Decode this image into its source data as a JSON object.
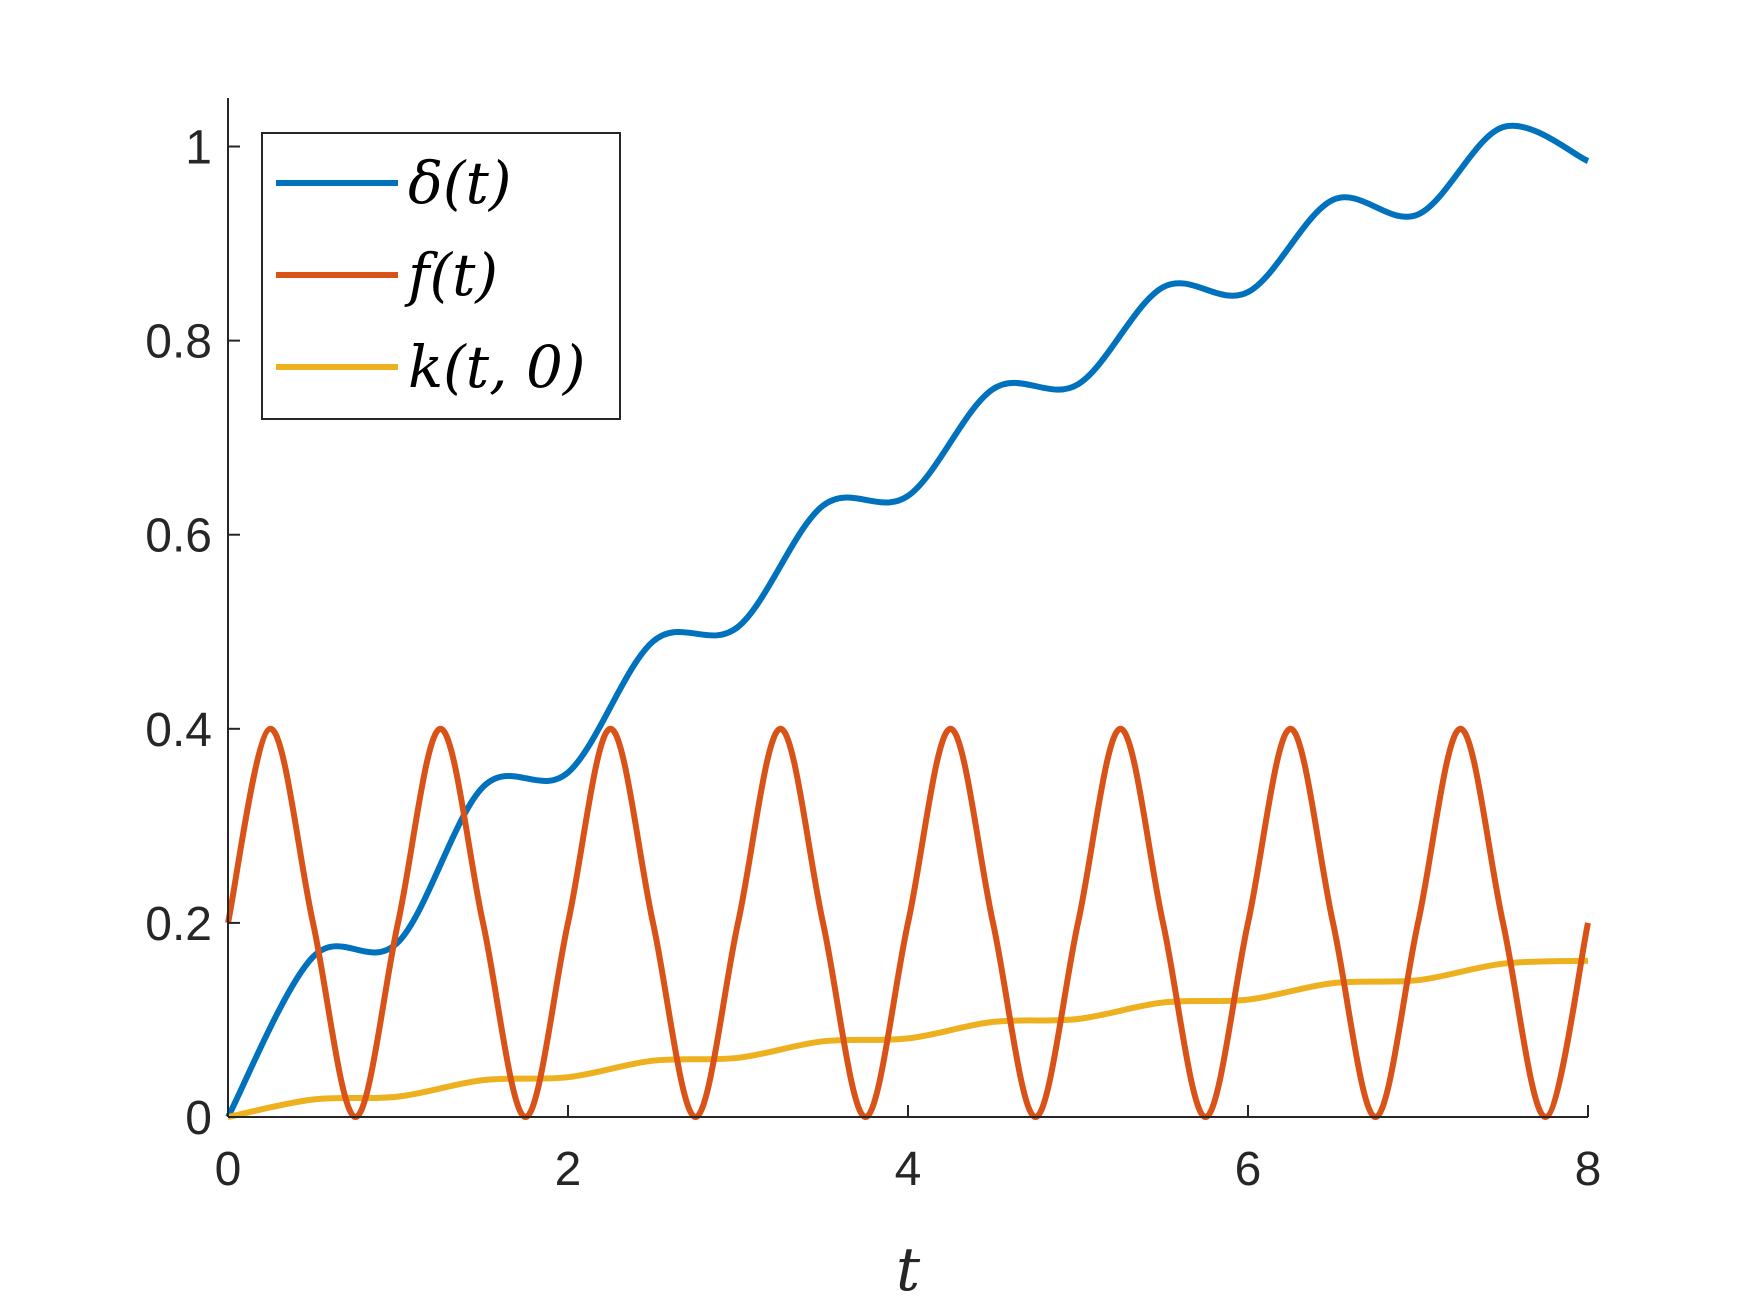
{
  "chart_data": {
    "type": "line",
    "xlabel": "t",
    "ylabel": "",
    "xlim": [
      0,
      8
    ],
    "ylim": [
      0,
      1.05
    ],
    "xticks": [
      0,
      2,
      4,
      6,
      8
    ],
    "yticks": [
      0,
      0.2,
      0.4,
      0.6,
      0.8,
      1
    ],
    "xtick_labels": [
      "0",
      "2",
      "4",
      "6",
      "8"
    ],
    "ytick_labels": [
      "0",
      "0.2",
      "0.4",
      "0.6",
      "0.8",
      "1"
    ],
    "grid": false,
    "legend_position": "top-left",
    "series": [
      {
        "name": "δ(t)",
        "color": "#0072BD",
        "x": [
          0,
          0.5,
          1.0,
          1.5,
          2.0,
          2.5,
          3.0,
          3.5,
          4.0,
          4.5,
          5.0,
          5.5,
          6.0,
          6.5,
          7.0,
          7.5,
          8.0
        ],
        "y": [
          0.0,
          0.165,
          0.18,
          0.34,
          0.355,
          0.49,
          0.505,
          0.63,
          0.64,
          0.75,
          0.755,
          0.855,
          0.85,
          0.945,
          0.93,
          1.02,
          0.985
        ]
      },
      {
        "name": "f(t)",
        "color": "#D95319",
        "x": [
          0,
          0.25,
          0.5,
          0.75,
          1.0,
          1.25,
          1.5,
          1.75,
          2.0,
          2.25,
          2.5,
          2.75,
          3.0,
          3.25,
          3.5,
          3.75,
          4.0,
          4.25,
          4.5,
          4.75,
          5.0,
          5.25,
          5.5,
          5.75,
          6.0,
          6.25,
          6.5,
          6.75,
          7.0,
          7.25,
          7.5,
          7.75,
          8.0
        ],
        "y": [
          0.2,
          0.4,
          0.2,
          0.0,
          0.2,
          0.4,
          0.2,
          0.0,
          0.2,
          0.4,
          0.2,
          0.0,
          0.2,
          0.4,
          0.2,
          0.0,
          0.2,
          0.4,
          0.2,
          0.0,
          0.2,
          0.4,
          0.2,
          0.0,
          0.2,
          0.4,
          0.2,
          0.0,
          0.2,
          0.4,
          0.2,
          0.0,
          0.2
        ]
      },
      {
        "name": "k(t, 0)",
        "color": "#EDB120",
        "x": [
          0,
          0.5,
          1.0,
          1.5,
          2.0,
          2.5,
          3.0,
          3.5,
          4.0,
          4.5,
          5.0,
          5.5,
          6.0,
          6.5,
          7.0,
          7.5,
          8.0
        ],
        "y": [
          0.0,
          0.018,
          0.021,
          0.038,
          0.041,
          0.058,
          0.061,
          0.078,
          0.081,
          0.098,
          0.101,
          0.118,
          0.121,
          0.138,
          0.141,
          0.158,
          0.161
        ]
      }
    ]
  }
}
